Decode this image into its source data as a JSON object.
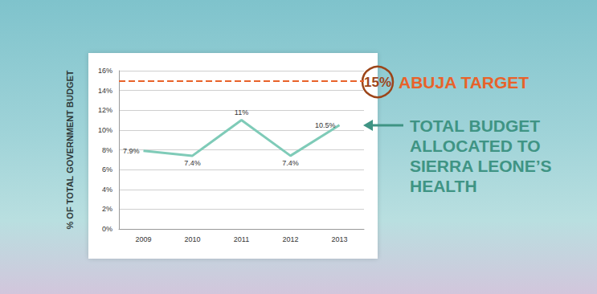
{
  "chart_data": {
    "type": "line",
    "y_label": "% OF TOTAL GOVERNMENT BUDGET",
    "categories": [
      "2009",
      "2010",
      "2011",
      "2012",
      "2013"
    ],
    "values": [
      7.9,
      7.4,
      11,
      7.4,
      10.5
    ],
    "value_labels": [
      "7.9%",
      "7.4%",
      "11%",
      "7.4%",
      "10.5%"
    ],
    "data_labels": true,
    "color": "#7fcbb8",
    "ylim": [
      0,
      16
    ],
    "yticks": [
      {
        "value": 0,
        "label": "0%"
      },
      {
        "value": 2,
        "label": "2%"
      },
      {
        "value": 4,
        "label": "4%"
      },
      {
        "value": 6,
        "label": "6%"
      },
      {
        "value": 8,
        "label": "8%"
      },
      {
        "value": 10,
        "label": "10%"
      },
      {
        "value": 12,
        "label": "12%"
      },
      {
        "value": 14,
        "label": "14%"
      },
      {
        "value": 16,
        "label": "16%"
      }
    ],
    "grid": true,
    "annotations": [
      {
        "value": 15,
        "label": "15%",
        "text": "ABUJA TARGET",
        "color": "#e8622a",
        "line_style": "dashed"
      },
      {
        "lines": [
          "TOTAL BUDGET",
          "ALLOCATED TO",
          "SIERRA LEONE’S",
          "HEALTH"
        ],
        "color": "#3f9484"
      }
    ]
  }
}
